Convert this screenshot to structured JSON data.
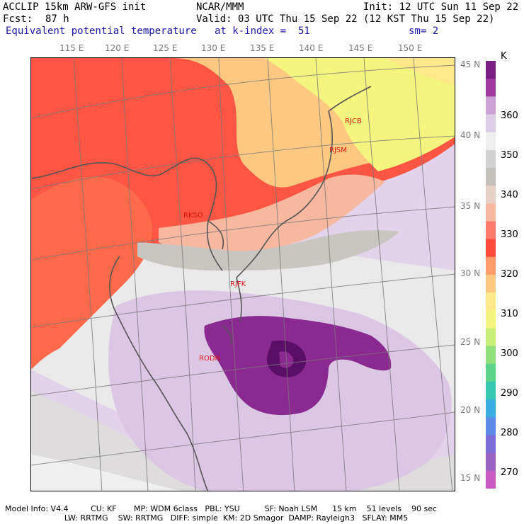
{
  "header": {
    "model_title": "ACCLIP 15km ARW-GFS init",
    "org": "NCAR/MMM",
    "init": "Init: 12 UTC Sun 11 Sep 22",
    "fcst_label": "Fcst:",
    "fcst_value": "87 h",
    "valid": "Valid: 03 UTC Thu 15 Sep 22 (12 KST Thu 15 Sep 22)",
    "field": "Equivalent potential temperature",
    "kindex": "at k-index =  51",
    "smoothing": "sm= 2"
  },
  "map": {
    "lon_labels": [
      "115 E",
      "120 E",
      "125 E",
      "130 E",
      "135 E",
      "140 E",
      "145 E",
      "150 E"
    ],
    "lat_labels": [
      "45 N",
      "40 N",
      "35 N",
      "30 N",
      "25 N",
      "20 N",
      "15 N"
    ],
    "stations": [
      "RJCB",
      "RJSM",
      "RKSO",
      "RJFK",
      "RODN"
    ]
  },
  "colorbar": {
    "unit": "K",
    "labels": [
      "360",
      "350",
      "340",
      "330",
      "320",
      "310",
      "300",
      "290",
      "280",
      "270"
    ],
    "colors": [
      "#7a1f83",
      "#a23a9f",
      "#caa3d4",
      "#dccde6",
      "#eeeeee",
      "#d2d2d2",
      "#c4c0bc",
      "#e8cfc6",
      "#f7b8a0",
      "#ff7a6a",
      "#ff4a3c",
      "#ff9c6a",
      "#ffc880",
      "#ffe88a",
      "#f3f57e",
      "#c8ee7a",
      "#8fe07a",
      "#5bd48c",
      "#37c8b4",
      "#3aaee0",
      "#5c8ae6",
      "#7c6ed6",
      "#9a62c6",
      "#c85ac2"
    ]
  },
  "footer": {
    "line1": "  Model Info: V4.4         CU: KF       MP: WDM 6class   PBL: YSU          SF: Noah LSM      15 km    51 levels    90 sec",
    "line2": "                          LW: RRTMG    SW: RRTMG   DIFF: simple  KM: 2D Smagor  DAMP: Rayleigh3   SFLAY: MM5"
  }
}
